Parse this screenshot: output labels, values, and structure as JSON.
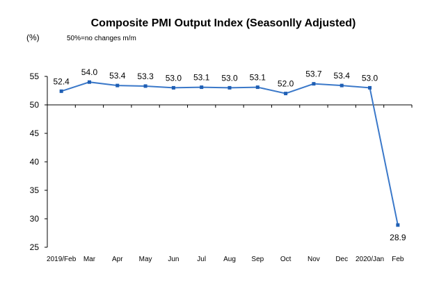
{
  "chart_data": {
    "type": "line",
    "title": "Composite PMI Output Index (Seasonlly Adjusted)",
    "unit_label": "(%)",
    "note": "50%=no changes  m/m",
    "categories": [
      "2019/Feb",
      "Mar",
      "Apr",
      "May",
      "Jun",
      "Jul",
      "Aug",
      "Sep",
      "Oct",
      "Nov",
      "Dec",
      "2020/Jan",
      "Feb"
    ],
    "series": [
      {
        "values": [
          52.4,
          54.0,
          53.4,
          53.3,
          53.0,
          53.1,
          53.0,
          53.1,
          52.0,
          53.7,
          53.4,
          53.0,
          28.9
        ],
        "labels": [
          "52.4",
          "54.0",
          "53.4",
          "53.3",
          "53.0",
          "53.1",
          "53.0",
          "53.1",
          "52.0",
          "53.7",
          "53.4",
          "53.0",
          "28.9"
        ],
        "color": "#3a78c9"
      }
    ],
    "ylim": [
      25,
      55
    ],
    "yticks": [
      "25",
      "30",
      "35",
      "40",
      "45",
      "50",
      "55"
    ],
    "x_axis_at": 50,
    "grid": false,
    "legend": "none"
  }
}
